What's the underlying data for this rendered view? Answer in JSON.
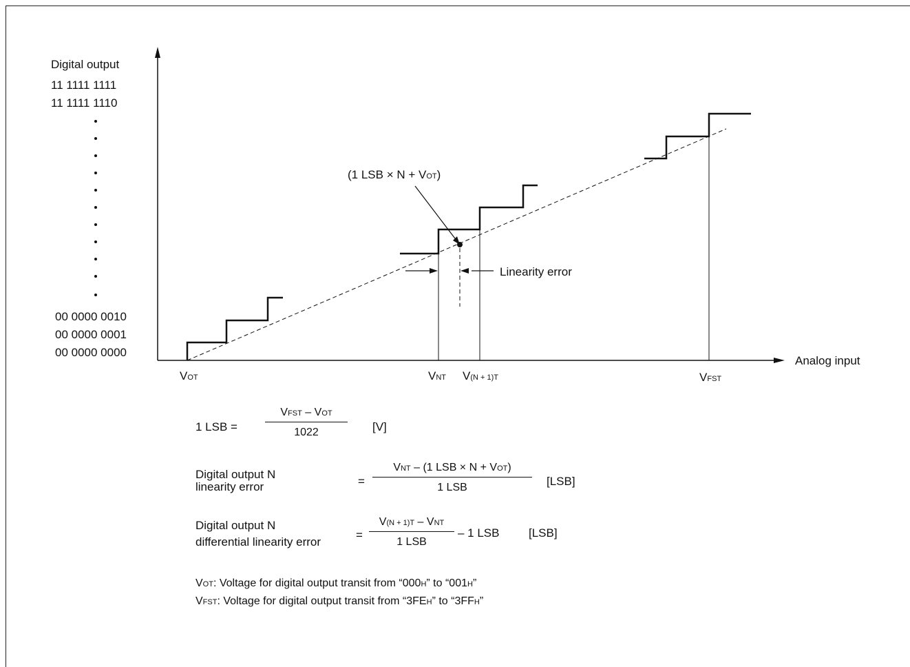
{
  "yaxis": {
    "title": "Digital output",
    "codes_top": [
      "11 1111 1111",
      "11 1111 1110"
    ],
    "codes_bottom": [
      "00 0000 0010",
      "00 0000 0001",
      "00 0000 0000"
    ]
  },
  "xaxis": {
    "title": "Analog input",
    "labels": {
      "vot_main": "V",
      "vot_sub": "OT",
      "vnt_main": "V",
      "vnt_sub": "NT",
      "vn1t_main": "V",
      "vn1t_sub": "(N + 1)T",
      "vfst_main": "V",
      "vfst_sub": "FST"
    }
  },
  "annotations": {
    "point_label_pre": "(1 LSB × N + V",
    "point_label_sub": "OT",
    "point_label_post": ")",
    "linearity_error": "Linearity error"
  },
  "formulas": {
    "lsb_lhs": "1 LSB =",
    "lsb_num_a": "V",
    "lsb_num_a_sub": "FST",
    "lsb_num_mid": " – V",
    "lsb_num_b_sub": "OT",
    "lsb_den": "1022",
    "lsb_unit": "[V]",
    "le_label_1": "Digital output N",
    "le_label_2": "linearity error",
    "le_eq": "=",
    "le_num_a": "V",
    "le_num_a_sub": "NT",
    "le_num_mid": " – (1 LSB × N + V",
    "le_num_sub2": "OT",
    "le_num_end": ")",
    "le_den": "1 LSB",
    "le_unit": "[LSB]",
    "dle_label_1": "Digital output N",
    "dle_label_2": "differential linearity error",
    "dle_eq": "=",
    "dle_num_a": "V",
    "dle_num_a_sub": "(N + 1)T",
    "dle_num_mid": " – V",
    "dle_num_b_sub": "NT",
    "dle_den": "1 LSB",
    "dle_tail": "– 1 LSB",
    "dle_unit": "[LSB]"
  },
  "notes": {
    "vot_a": "V",
    "vot_sub": "OT",
    "vot_text_1": ":  Voltage for digital output transit from “000",
    "vot_h1": "H",
    "vot_text_2": "” to “001",
    "vot_h2": "H",
    "vot_text_3": "”",
    "vfst_a": "V",
    "vfst_sub": "FST",
    "vfst_text_1": ": Voltage for digital output transit from “3FE",
    "vfst_h1": "H",
    "vfst_text_2": "” to “3FF",
    "vfst_h2": "H",
    "vfst_text_3": "”"
  }
}
